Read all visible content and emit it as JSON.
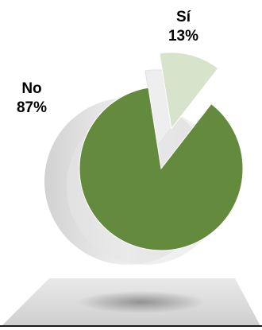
{
  "chart_data": {
    "type": "pie",
    "categories": [
      "No",
      "Sí"
    ],
    "values": [
      87,
      13
    ],
    "labels": [
      {
        "category": "No",
        "percent": "87%"
      },
      {
        "category": "Sí",
        "percent": "13%"
      }
    ],
    "colors": {
      "No": "#638a3d",
      "Sí": "#d8e3cc"
    },
    "exploded_slice": "Sí",
    "style": "3d-pie-on-platform",
    "legend": "none",
    "grid": false
  }
}
